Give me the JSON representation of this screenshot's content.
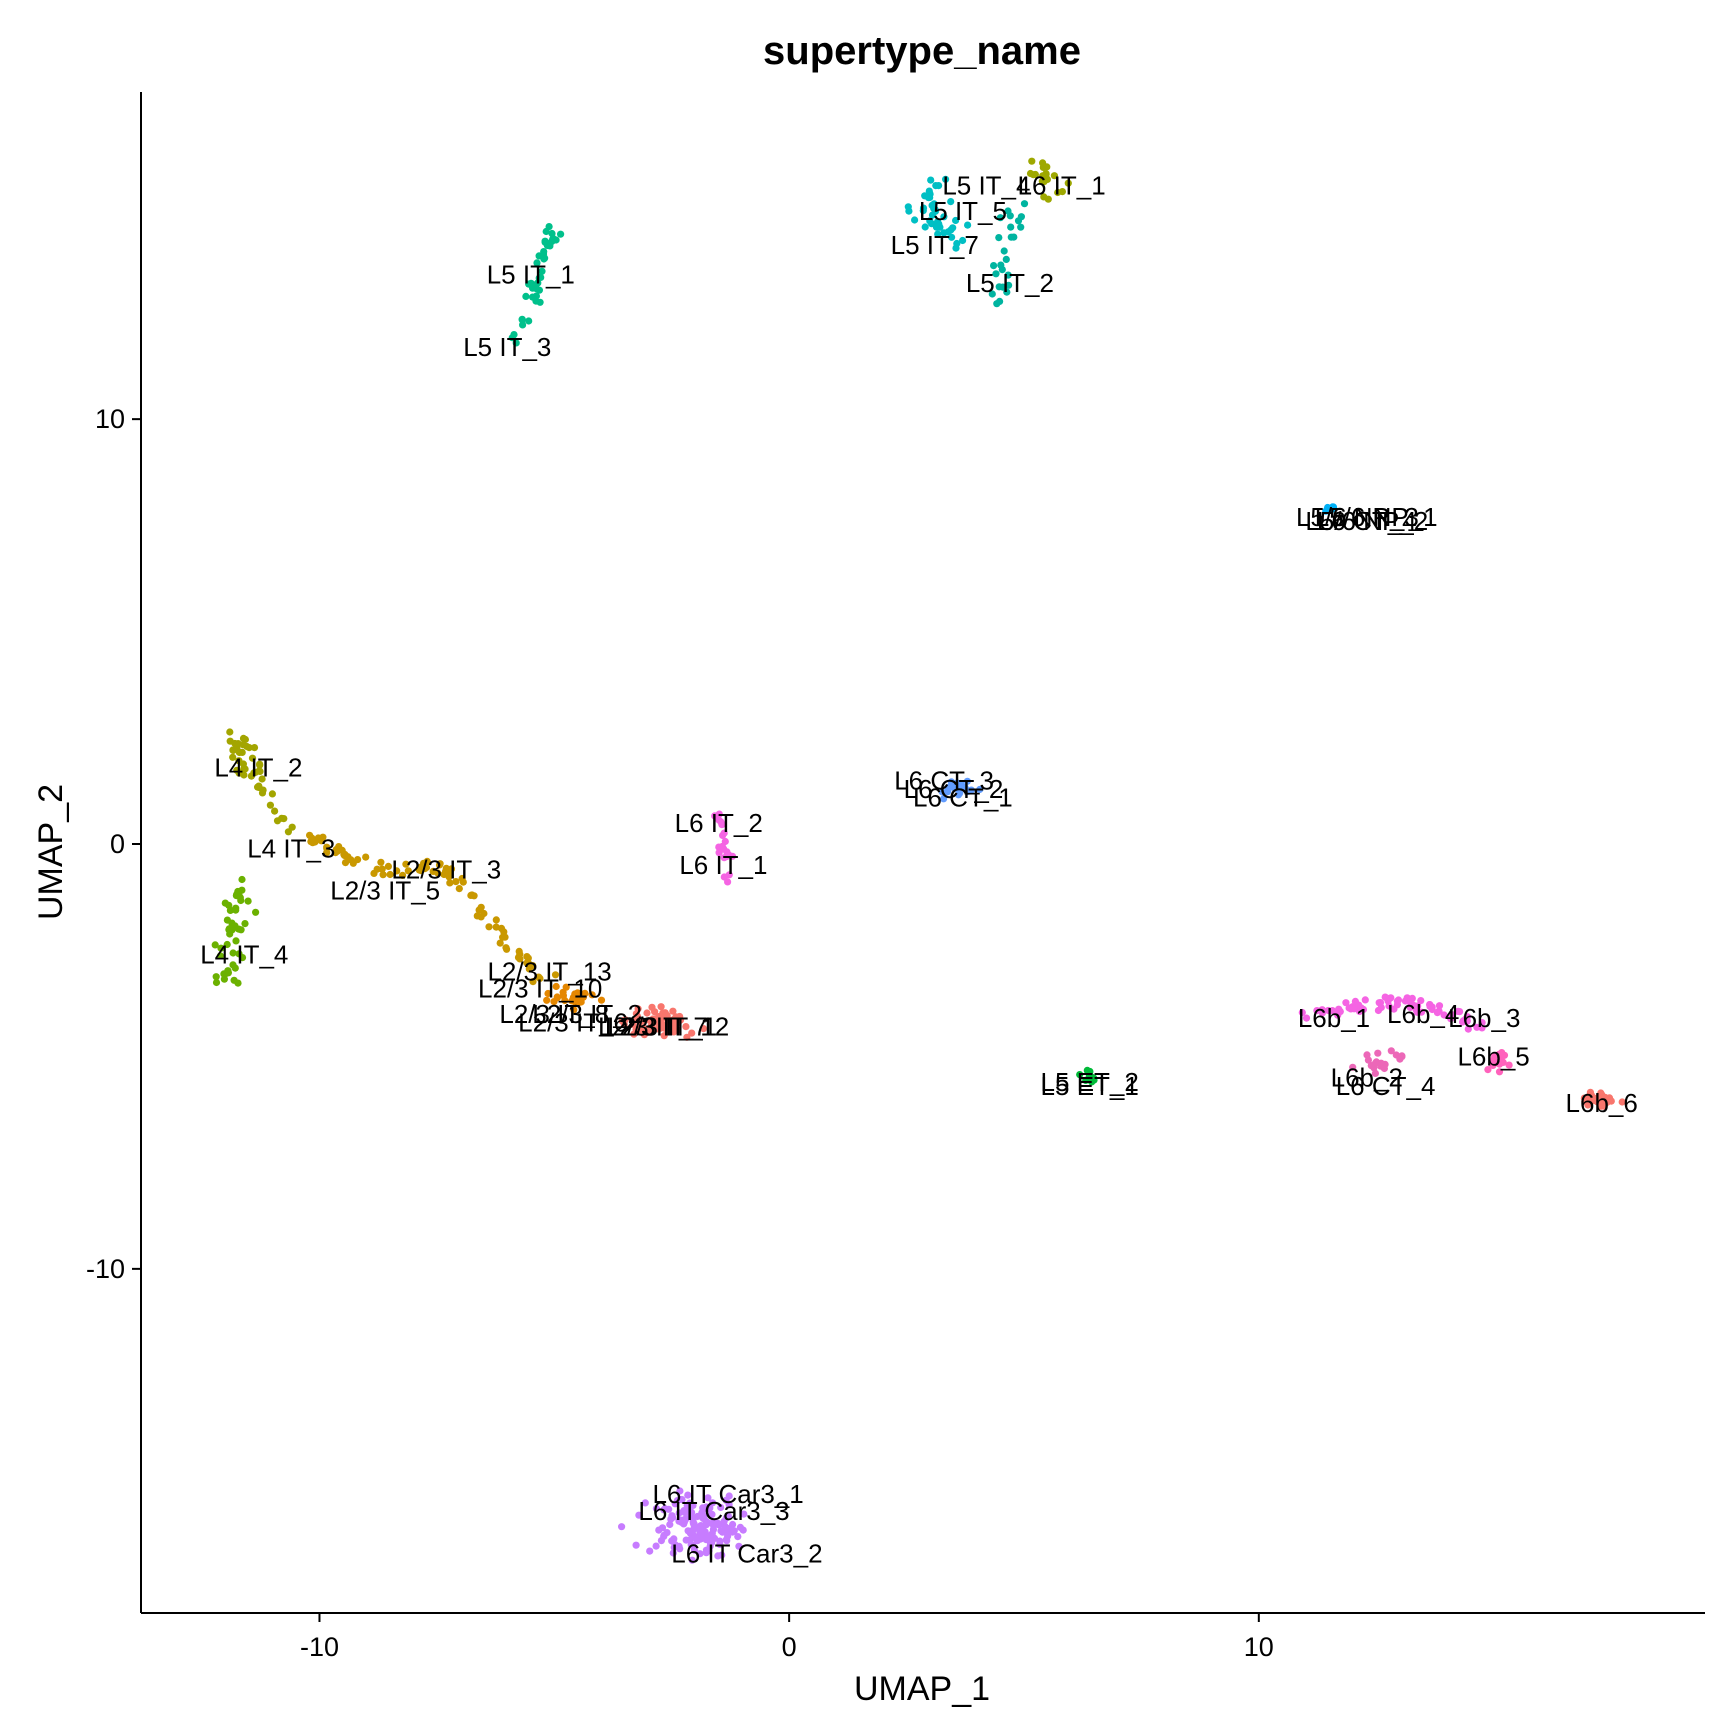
{
  "chart_data": {
    "type": "scatter",
    "title": "supertype_name",
    "xlabel": "UMAP_1",
    "ylabel": "UMAP_2",
    "xlim": [
      -13.8,
      19.5
    ],
    "ylim": [
      -18.1,
      17.7
    ],
    "xticks": [
      -10,
      0,
      10
    ],
    "yticks": [
      -10,
      0,
      10
    ],
    "grid": false,
    "legend": "none",
    "series": [
      {
        "color": "#F8766D",
        "center": [
          -2.8,
          -4.2
        ],
        "spread": [
          0.6,
          0.25
        ],
        "n": 80
      },
      {
        "color": "#E58700",
        "center": [
          -4.6,
          -3.6
        ],
        "spread": [
          0.5,
          0.2
        ],
        "n": 30
      },
      {
        "color": "#C99800",
        "path": [
          [
            -10.2,
            0.2
          ],
          [
            -9.0,
            -0.6
          ],
          [
            -7.6,
            -0.5
          ],
          [
            -6.9,
            -1.0
          ],
          [
            -6.2,
            -2.2
          ],
          [
            -5.2,
            -3.2
          ]
        ],
        "spread": [
          0.2,
          0.15
        ],
        "n": 90
      },
      {
        "color": "#A3A500",
        "path": [
          [
            -11.9,
            2.6
          ],
          [
            -11.3,
            1.4
          ],
          [
            -10.8,
            0.4
          ]
        ],
        "spread": [
          0.25,
          0.2
        ],
        "n": 45
      },
      {
        "color": "#6BB100",
        "path": [
          [
            -11.6,
            -0.8
          ],
          [
            -11.8,
            -1.8
          ],
          [
            -12.0,
            -3.2
          ]
        ],
        "spread": [
          0.25,
          0.2
        ],
        "n": 45
      },
      {
        "color": "#9EA800",
        "path": [
          [
            5.3,
            16.0
          ],
          [
            5.7,
            15.4
          ]
        ],
        "spread": [
          0.3,
          0.25
        ],
        "n": 20
      },
      {
        "color": "#00BA38",
        "center": [
          6.4,
          -5.5
        ],
        "spread": [
          0.15,
          0.12
        ],
        "n": 12
      },
      {
        "color": "#00C08B",
        "path": [
          [
            -5.0,
            14.6
          ],
          [
            -5.5,
            12.9
          ],
          [
            -6.0,
            11.5
          ]
        ],
        "spread": [
          0.15,
          0.2
        ],
        "n": 40
      },
      {
        "color": "#00BFC4",
        "path": [
          [
            3.2,
            15.6
          ],
          [
            2.9,
            14.9
          ],
          [
            3.6,
            14.3
          ]
        ],
        "spread": [
          0.35,
          0.3
        ],
        "n": 40
      },
      {
        "color": "#00B4A0",
        "path": [
          [
            4.8,
            15.2
          ],
          [
            4.6,
            13.8
          ],
          [
            4.3,
            12.6
          ]
        ],
        "spread": [
          0.25,
          0.2
        ],
        "n": 25
      },
      {
        "color": "#00B0F6",
        "center": [
          11.6,
          7.9
        ],
        "spread": [
          0.25,
          0.08
        ],
        "n": 10
      },
      {
        "color": "#619CFF",
        "center": [
          3.6,
          1.3
        ],
        "spread": [
          0.3,
          0.18
        ],
        "n": 28
      },
      {
        "color": "#F564E3",
        "path": [
          [
            -1.5,
            0.7
          ],
          [
            -1.3,
            -0.8
          ]
        ],
        "spread": [
          0.12,
          0.2
        ],
        "n": 22
      },
      {
        "color": "#C77CFF",
        "center": [
          -2.0,
          -16.0
        ],
        "spread": [
          0.9,
          0.55
        ],
        "n": 150
      },
      {
        "color": "#F564E3",
        "path": [
          [
            11.2,
            -4.0
          ],
          [
            12.6,
            -3.7
          ],
          [
            13.8,
            -3.9
          ],
          [
            14.7,
            -4.3
          ]
        ],
        "spread": [
          0.3,
          0.15
        ],
        "n": 75
      },
      {
        "color": "#EC68B8",
        "center": [
          12.6,
          -5.1
        ],
        "spread": [
          0.6,
          0.25
        ],
        "n": 18
      },
      {
        "color": "#FF62BC",
        "center": [
          15.1,
          -5.1
        ],
        "spread": [
          0.2,
          0.2
        ],
        "n": 15
      },
      {
        "color": "#F8766D",
        "center": [
          17.2,
          -6.0
        ],
        "spread": [
          0.3,
          0.13
        ],
        "n": 45
      }
    ],
    "labels": [
      {
        "text": "L5 IT_4",
        "x": 4.2,
        "y": 15.5
      },
      {
        "text": "L6 IT_1",
        "x": 5.8,
        "y": 15.5
      },
      {
        "text": "L5 IT_5",
        "x": 3.7,
        "y": 14.9
      },
      {
        "text": "L5 IT_7",
        "x": 3.1,
        "y": 14.1
      },
      {
        "text": "L5 IT_1",
        "x": -5.5,
        "y": 13.4
      },
      {
        "text": "L5 IT_2",
        "x": 4.7,
        "y": 13.2
      },
      {
        "text": "L5 IT_3",
        "x": -6.0,
        "y": 11.7
      },
      {
        "text": "L5/6 NP_3",
        "x": 12.1,
        "y": 7.7
      },
      {
        "text": "L5/6 NP_1",
        "x": 12.5,
        "y": 7.7
      },
      {
        "text": "L5/6 NP_2",
        "x": 12.3,
        "y": 7.6
      },
      {
        "text": "L6 CT_4",
        "x": 12.3,
        "y": 7.6
      },
      {
        "text": "L6 CT_3",
        "x": 3.3,
        "y": 1.5
      },
      {
        "text": "L6 CT_2",
        "x": 3.5,
        "y": 1.3
      },
      {
        "text": "L6 CT_1",
        "x": 3.7,
        "y": 1.1
      },
      {
        "text": "L4 IT_2",
        "x": -11.3,
        "y": 1.8
      },
      {
        "text": "L6 IT_2",
        "x": -1.5,
        "y": 0.5
      },
      {
        "text": "L4 IT_3",
        "x": -10.6,
        "y": -0.1
      },
      {
        "text": "L6 IT_1",
        "x": -1.4,
        "y": -0.5
      },
      {
        "text": "L2/3 IT_3",
        "x": -7.3,
        "y": -0.6
      },
      {
        "text": "L2/3 IT_5",
        "x": -8.6,
        "y": -1.1
      },
      {
        "text": "L4 IT_4",
        "x": -11.6,
        "y": -2.6
      },
      {
        "text": "L2/3 IT_13",
        "x": -5.1,
        "y": -3.0
      },
      {
        "text": "L2/3 IT_10",
        "x": -5.3,
        "y": -3.4
      },
      {
        "text": "L2/3 IT_8",
        "x": -5.0,
        "y": -4.0
      },
      {
        "text": "L2/3 IT_2",
        "x": -4.3,
        "y": -4.0
      },
      {
        "text": "L2/3 IT_6",
        "x": -4.6,
        "y": -4.2
      },
      {
        "text": "L2/3 IT_7",
        "x": -2.9,
        "y": -4.3
      },
      {
        "text": "L2/3 IT_1",
        "x": -2.7,
        "y": -4.3
      },
      {
        "text": "L2/3 IT_12",
        "x": -2.6,
        "y": -4.3
      },
      {
        "text": "L6b_1",
        "x": 11.6,
        "y": -4.1
      },
      {
        "text": "L6b_4",
        "x": 13.5,
        "y": -4.0
      },
      {
        "text": "L6b_3",
        "x": 14.8,
        "y": -4.1
      },
      {
        "text": "L6b_5",
        "x": 15.0,
        "y": -5.0
      },
      {
        "text": "L5 ET_2",
        "x": 6.4,
        "y": -5.6
      },
      {
        "text": "L5 ET_1",
        "x": 6.4,
        "y": -5.7
      },
      {
        "text": "L6b_2",
        "x": 12.3,
        "y": -5.5
      },
      {
        "text": "L6 CT_4",
        "x": 12.7,
        "y": -5.7
      },
      {
        "text": "L6b_6",
        "x": 17.3,
        "y": -6.1
      },
      {
        "text": "L6 IT Car3_1",
        "x": -1.3,
        "y": -15.3
      },
      {
        "text": "L6 IT Car3_3",
        "x": -1.6,
        "y": -15.7
      },
      {
        "text": "L6 IT Car3_2",
        "x": -0.9,
        "y": -16.7
      }
    ]
  }
}
